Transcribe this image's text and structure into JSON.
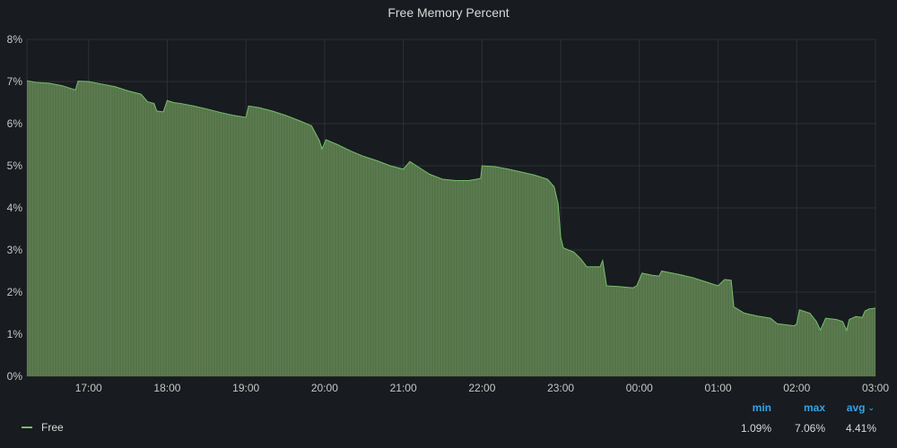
{
  "panel": {
    "title": "Free Memory Percent"
  },
  "legend": {
    "series_name": "Free",
    "series_color": "#73bf69",
    "stat_headers": {
      "min": "min",
      "max": "max",
      "avg": "avg",
      "sort_icon": "chevron-down-icon"
    },
    "stat_values": {
      "min": "1.09%",
      "max": "7.06%",
      "avg": "4.41%"
    }
  },
  "colors": {
    "background": "#181b1f",
    "grid": "#2c3235",
    "fill": "#56744a",
    "line": "#73bf69",
    "header_accent": "#33a2e5"
  },
  "chart_data": {
    "type": "area",
    "title": "Free Memory Percent",
    "xlabel": "",
    "ylabel": "",
    "ylim": [
      0,
      8
    ],
    "xlim": [
      "16:13",
      "03:00"
    ],
    "y_ticks": [
      "0%",
      "1%",
      "2%",
      "3%",
      "4%",
      "5%",
      "6%",
      "7%",
      "8%"
    ],
    "x_ticks": [
      "17:00",
      "18:00",
      "19:00",
      "20:00",
      "21:00",
      "22:00",
      "23:00",
      "00:00",
      "01:00",
      "02:00",
      "03:00"
    ],
    "grid": true,
    "legend_position": "bottom",
    "series": [
      {
        "name": "Free",
        "color": "#73bf69",
        "points": [
          [
            "16:13",
            7.02
          ],
          [
            "16:20",
            6.98
          ],
          [
            "16:30",
            6.96
          ],
          [
            "16:40",
            6.9
          ],
          [
            "16:50",
            6.8
          ],
          [
            "16:52",
            7.01
          ],
          [
            "17:00",
            7.0
          ],
          [
            "17:10",
            6.94
          ],
          [
            "17:20",
            6.88
          ],
          [
            "17:30",
            6.78
          ],
          [
            "17:40",
            6.7
          ],
          [
            "17:45",
            6.52
          ],
          [
            "17:50",
            6.48
          ],
          [
            "17:52",
            6.3
          ],
          [
            "17:57",
            6.28
          ],
          [
            "18:00",
            6.55
          ],
          [
            "18:05",
            6.5
          ],
          [
            "18:10",
            6.48
          ],
          [
            "18:20",
            6.42
          ],
          [
            "18:30",
            6.35
          ],
          [
            "18:40",
            6.27
          ],
          [
            "18:50",
            6.2
          ],
          [
            "19:00",
            6.15
          ],
          [
            "19:02",
            6.42
          ],
          [
            "19:10",
            6.38
          ],
          [
            "19:20",
            6.3
          ],
          [
            "19:30",
            6.2
          ],
          [
            "19:40",
            6.08
          ],
          [
            "19:50",
            5.95
          ],
          [
            "19:56",
            5.6
          ],
          [
            "19:58",
            5.4
          ],
          [
            "20:01",
            5.62
          ],
          [
            "20:10",
            5.5
          ],
          [
            "20:20",
            5.35
          ],
          [
            "20:30",
            5.22
          ],
          [
            "20:40",
            5.12
          ],
          [
            "20:50",
            5.0
          ],
          [
            "21:00",
            4.92
          ],
          [
            "21:05",
            5.1
          ],
          [
            "21:10",
            5.0
          ],
          [
            "21:20",
            4.8
          ],
          [
            "21:30",
            4.68
          ],
          [
            "21:40",
            4.65
          ],
          [
            "21:50",
            4.65
          ],
          [
            "21:59",
            4.7
          ],
          [
            "22:00",
            5.0
          ],
          [
            "22:10",
            4.98
          ],
          [
            "22:20",
            4.92
          ],
          [
            "22:30",
            4.85
          ],
          [
            "22:40",
            4.78
          ],
          [
            "22:50",
            4.68
          ],
          [
            "22:55",
            4.5
          ],
          [
            "22:58",
            4.1
          ],
          [
            "23:00",
            3.3
          ],
          [
            "23:02",
            3.05
          ],
          [
            "23:10",
            2.95
          ],
          [
            "23:15",
            2.8
          ],
          [
            "23:20",
            2.6
          ],
          [
            "23:30",
            2.6
          ],
          [
            "23:32",
            2.75
          ],
          [
            "23:35",
            2.15
          ],
          [
            "23:45",
            2.13
          ],
          [
            "23:55",
            2.1
          ],
          [
            "23:58",
            2.15
          ],
          [
            "00:00",
            2.3
          ],
          [
            "00:02",
            2.45
          ],
          [
            "00:10",
            2.4
          ],
          [
            "00:15",
            2.38
          ],
          [
            "00:17",
            2.5
          ],
          [
            "00:30",
            2.42
          ],
          [
            "00:40",
            2.35
          ],
          [
            "00:50",
            2.25
          ],
          [
            "01:00",
            2.15
          ],
          [
            "01:05",
            2.3
          ],
          [
            "01:10",
            2.28
          ],
          [
            "01:12",
            1.65
          ],
          [
            "01:20",
            1.5
          ],
          [
            "01:30",
            1.43
          ],
          [
            "01:40",
            1.38
          ],
          [
            "01:45",
            1.25
          ],
          [
            "01:58",
            1.2
          ],
          [
            "02:00",
            1.25
          ],
          [
            "02:02",
            1.58
          ],
          [
            "02:10",
            1.5
          ],
          [
            "02:15",
            1.3
          ],
          [
            "02:18",
            1.1
          ],
          [
            "02:22",
            1.38
          ],
          [
            "02:30",
            1.35
          ],
          [
            "02:35",
            1.3
          ],
          [
            "02:38",
            1.09
          ],
          [
            "02:40",
            1.35
          ],
          [
            "02:45",
            1.42
          ],
          [
            "02:50",
            1.4
          ],
          [
            "02:52",
            1.55
          ],
          [
            "02:55",
            1.6
          ],
          [
            "03:00",
            1.62
          ]
        ]
      }
    ]
  }
}
